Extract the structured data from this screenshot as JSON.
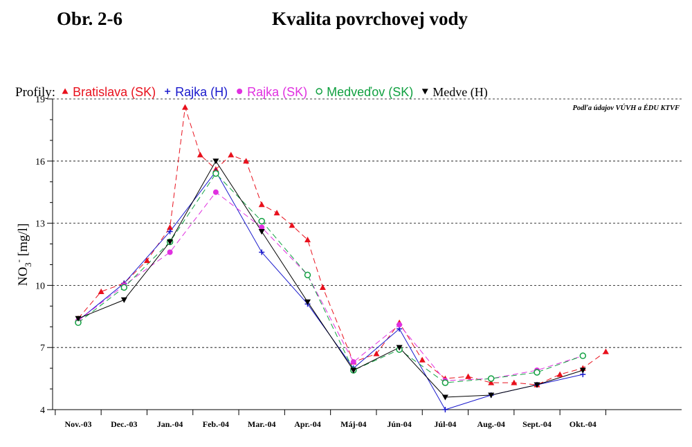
{
  "header": {
    "figure_label": "Obr. 2-6",
    "title": "Kvalita povrchovej vody"
  },
  "chart_data": {
    "type": "line",
    "legend_prefix": "Profily:",
    "legend_position": "top",
    "source_note": "Podľa údajov VÚVH a ÉDU KTVF",
    "ylabel": "NO3- [mg/l]",
    "ylim": [
      4,
      19
    ],
    "yticks": [
      4,
      7,
      10,
      13,
      16,
      19
    ],
    "grid": "horizontal dashed at major y ticks",
    "categories": [
      "Nov.-03",
      "Dec.-03",
      "Jan.-04",
      "Feb.-04",
      "Mar.-04",
      "Apr.-04",
      "Máj-04",
      "Jún-04",
      "Júl-04",
      "Aug.-04",
      "Sept.-04",
      "Okt.-04"
    ],
    "series": [
      {
        "name": "Bratislava (SK)",
        "marker": "triangle-up",
        "line": "dashed",
        "color": "#e8101c",
        "points": [
          [
            0,
            8.4
          ],
          [
            0.5,
            9.7
          ],
          [
            1,
            10.1
          ],
          [
            1.5,
            11.2
          ],
          [
            2,
            12.8
          ],
          [
            2.33,
            18.6
          ],
          [
            2.66,
            16.3
          ],
          [
            3,
            15.6
          ],
          [
            3.33,
            16.3
          ],
          [
            3.66,
            16.0
          ],
          [
            4,
            13.9
          ],
          [
            4.33,
            13.5
          ],
          [
            4.66,
            12.9
          ],
          [
            5,
            12.2
          ],
          [
            5.33,
            9.9
          ],
          [
            6,
            6.3
          ],
          [
            6.5,
            6.7
          ],
          [
            7,
            8.2
          ],
          [
            7.5,
            6.4
          ],
          [
            8,
            5.5
          ],
          [
            8.5,
            5.6
          ],
          [
            9,
            5.3
          ],
          [
            9.5,
            5.3
          ],
          [
            10,
            5.2
          ],
          [
            10.5,
            5.7
          ],
          [
            11,
            6.0
          ],
          [
            11.5,
            6.8
          ]
        ]
      },
      {
        "name": "Rajka (H)",
        "marker": "plus",
        "line": "solid",
        "color": "#1818cc",
        "points": [
          [
            0,
            8.3
          ],
          [
            1,
            10.1
          ],
          [
            2,
            12.6
          ],
          [
            3,
            15.5
          ],
          [
            4,
            11.6
          ],
          [
            5,
            9.1
          ],
          [
            6,
            6.0
          ],
          [
            7,
            7.9
          ],
          [
            8,
            4.0
          ],
          [
            9,
            4.7
          ],
          [
            10,
            5.2
          ],
          [
            11,
            5.7
          ]
        ]
      },
      {
        "name": "Rajka (SK)",
        "marker": "circle-filled",
        "line": "dashed",
        "color": "#e030e0",
        "points": [
          [
            0,
            8.3
          ],
          [
            1,
            10.0
          ],
          [
            2,
            11.6
          ],
          [
            3,
            14.5
          ],
          [
            4,
            12.8
          ],
          [
            5,
            10.5
          ],
          [
            6,
            6.3
          ],
          [
            7,
            8.1
          ],
          [
            8,
            5.4
          ],
          [
            9,
            5.5
          ],
          [
            10,
            5.9
          ],
          [
            11,
            6.6
          ]
        ]
      },
      {
        "name": "Medveďov (SK)",
        "marker": "circle-open",
        "line": "dashed",
        "color": "#10a040",
        "points": [
          [
            0,
            8.2
          ],
          [
            1,
            9.9
          ],
          [
            2,
            12.1
          ],
          [
            3,
            15.4
          ],
          [
            4,
            13.1
          ],
          [
            5,
            10.5
          ],
          [
            6,
            5.9
          ],
          [
            7,
            6.9
          ],
          [
            8,
            5.3
          ],
          [
            9,
            5.5
          ],
          [
            10,
            5.8
          ],
          [
            11,
            6.6
          ]
        ]
      },
      {
        "name": "Medve (H)",
        "marker": "triangle-down",
        "line": "solid",
        "color": "#000000",
        "points": [
          [
            0,
            8.4
          ],
          [
            1,
            9.3
          ],
          [
            2,
            12.1
          ],
          [
            3,
            16.0
          ],
          [
            4,
            12.6
          ],
          [
            5,
            9.2
          ],
          [
            6,
            5.9
          ],
          [
            7,
            7.0
          ],
          [
            8,
            4.6
          ],
          [
            9,
            4.7
          ],
          [
            10,
            5.2
          ],
          [
            11,
            5.9
          ]
        ]
      }
    ]
  }
}
